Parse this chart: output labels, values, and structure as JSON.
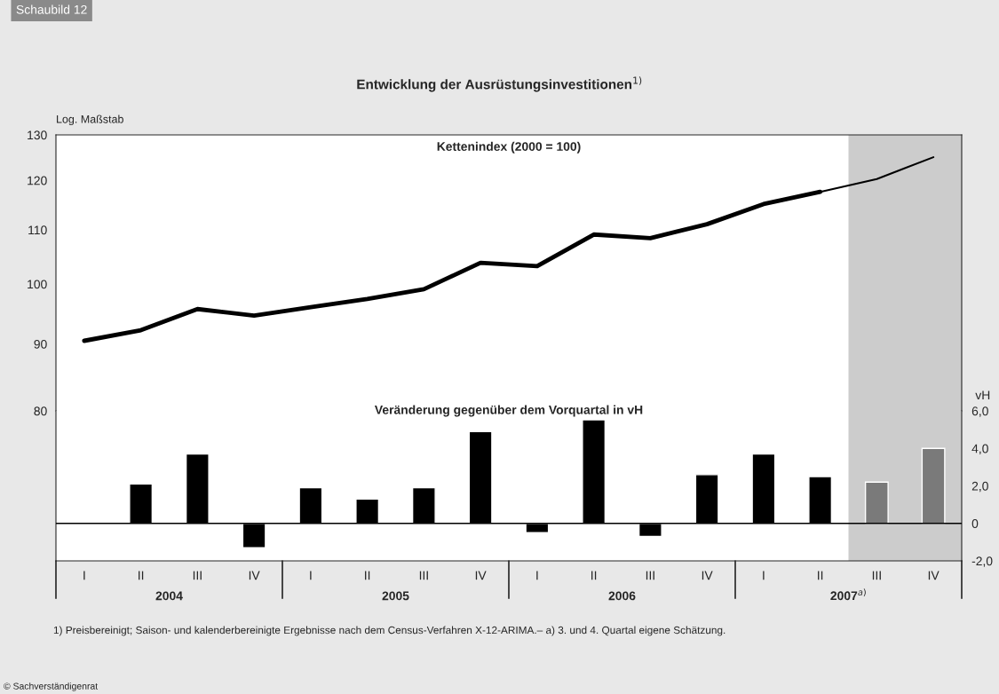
{
  "chart_data": [
    {
      "type": "line",
      "title": "Entwicklung der Ausrüstungsinvestitionen$^{1)}$",
      "subtitle": "Kettenindex (2000 = 100)",
      "ylabel": "Log. Maßstab",
      "categories": [
        null,
        null,
        null,
        null,
        null,
        null,
        null,
        null,
        null,
        null,
        null,
        null,
        null,
        null,
        null,
        null
      ],
      "series": [
        {
          "color": "#000000",
          "values": [
            90.5,
            92.2,
            95.7,
            94.6,
            96.0,
            97.4,
            99.1,
            103.8,
            103.2,
            109.1,
            108.4,
            111.1,
            115.1,
            117.6,
            null,
            null
          ]
        },
        {
          "color": "#000000",
          "values": [
            null,
            null,
            null,
            null,
            null,
            null,
            null,
            null,
            null,
            null,
            null,
            null,
            null,
            117.6,
            120.3,
            125.0
          ]
        }
      ],
      "log": "y",
      "ylim": [
        80,
        130
      ],
      "yticks": [
        80,
        90,
        100,
        110,
        120,
        130
      ],
      "tick_labels": "y",
      "grid": false,
      "annotations": [
        "Schaubild 12",
        "1) Preisbereinigt; Saison- und kalenderbereinigte Ergebnisse nach dem Census-Verfahren X-12-ARIMA.– a) 3. und 4. Quartal eigene Schätzung.",
        "© Sachverständigenrat"
      ]
    },
    {
      "type": "bar",
      "title": "Veränderung gegenüber dem Vorquartal in vH",
      "ylabel": "vH",
      "categories": [
        "I",
        "II",
        "III",
        "IV",
        "I",
        "II",
        "III",
        "IV",
        "I",
        "II",
        "III",
        "IV",
        "I",
        "II",
        "III",
        "IV"
      ],
      "values": [
        null,
        2.1,
        3.7,
        -1.3,
        1.9,
        1.3,
        1.9,
        4.9,
        -0.5,
        5.6,
        -0.7,
        2.6,
        3.7,
        2.5,
        2.2,
        4.0
      ],
      "colors": [
        "#000000",
        "#000000",
        "#000000",
        "#000000",
        "#000000",
        "#000000",
        "#000000",
        "#000000",
        "#000000",
        "#000000",
        "#000000",
        "#000000",
        "#000000",
        "#000000",
        "#7a7a7a",
        "#7a7a7a"
      ],
      "ylim": [
        -2,
        6
      ],
      "yticks": [
        {
          "value": -2,
          "label": "-2,0"
        },
        {
          "value": 0,
          "label": "0"
        },
        {
          "value": 2,
          "label": "2,0"
        },
        {
          "value": 4,
          "label": "4,0"
        },
        {
          "value": 6,
          "label": "6,0"
        }
      ],
      "grid": false,
      "ref_lines": [
        {
          "axis": "y",
          "value": 0,
          "color": "#000000"
        }
      ],
      "annotations": [
        "2004",
        "2005",
        "2006",
        "2007$^{a)}$"
      ]
    }
  ]
}
